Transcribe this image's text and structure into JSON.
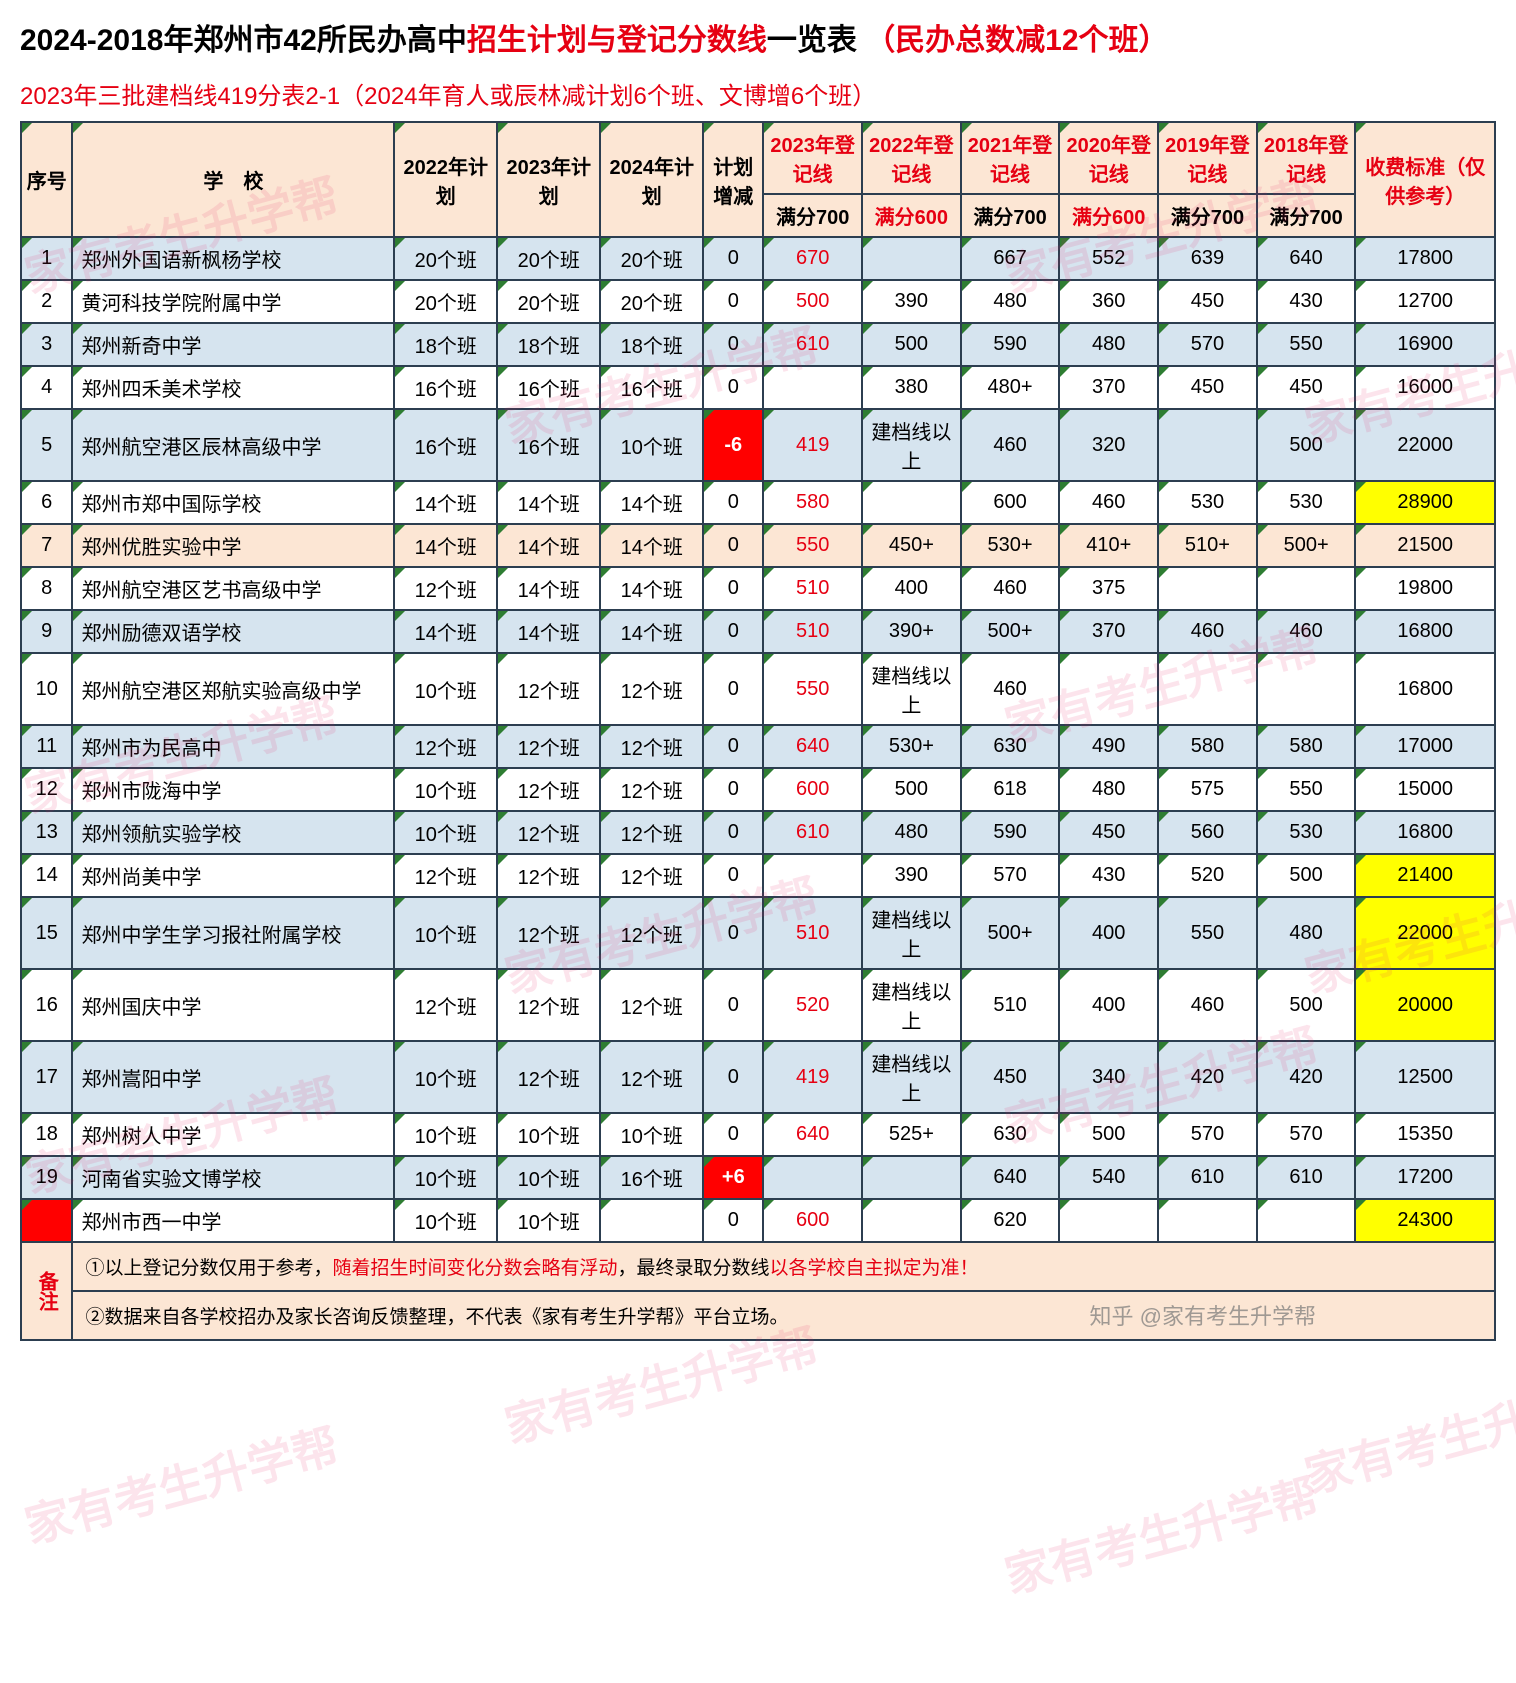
{
  "title_segments": [
    {
      "text": "2024-2018年郑州市42所民办高中",
      "cls": "title-black"
    },
    {
      "text": "招生计划与登记分数线",
      "cls": "title-red"
    },
    {
      "text": "一览表 ",
      "cls": "title-black"
    },
    {
      "text": "（民办总数减12个班）",
      "cls": "title-red"
    }
  ],
  "subtitle": "2023年三批建档线419分表2-1（2024年育人或辰林减计划6个班、文博增6个班）",
  "header": {
    "seq": "序号",
    "school": "学　校",
    "plan2022": "2022年计划",
    "plan2023": "2023年计划",
    "plan2024": "2024年计划",
    "delta": "计划增减",
    "y2023": "2023年登记线",
    "y2022": "2022年登记线",
    "y2021": "2021年登记线",
    "y2020": "2020年登记线",
    "y2019": "2019年登记线",
    "y2018": "2018年登记线",
    "full700": "满分700",
    "full600": "满分600",
    "fee": "收费标准（仅供参考）"
  },
  "col_widths": {
    "seq": 48,
    "school": 300,
    "plan": 96,
    "delta": 56,
    "year": 92,
    "fee": 130
  },
  "colors": {
    "header_bg": "#fce6d4",
    "row_even": "#d6e4ef",
    "row_odd": "#ffffff",
    "red": "#e60012",
    "hl_red": "#ff0000",
    "hl_yellow": "#ffff00",
    "border": "#2c3e50",
    "green_corner": "#2e7d32"
  },
  "rows": [
    {
      "seq": "1",
      "school": "郑州外国语新枫杨学校",
      "p22": "20个班",
      "p23": "20个班",
      "p24": "20个班",
      "delta": "0",
      "s23": "670",
      "s22": "",
      "s21": "667",
      "s20": "552",
      "s19": "639",
      "s18": "640",
      "fee": "17800"
    },
    {
      "seq": "2",
      "school": "黄河科技学院附属中学",
      "p22": "20个班",
      "p23": "20个班",
      "p24": "20个班",
      "delta": "0",
      "s23": "500",
      "s22": "390",
      "s21": "480",
      "s20": "360",
      "s19": "450",
      "s18": "430",
      "fee": "12700"
    },
    {
      "seq": "3",
      "school": "郑州新奇中学",
      "p22": "18个班",
      "p23": "18个班",
      "p24": "18个班",
      "delta": "0",
      "s23": "610",
      "s22": "500",
      "s21": "590",
      "s20": "480",
      "s19": "570",
      "s18": "550",
      "fee": "16900"
    },
    {
      "seq": "4",
      "school": "郑州四禾美术学校",
      "p22": "16个班",
      "p23": "16个班",
      "p24": "16个班",
      "delta": "0",
      "s23": "",
      "s22": "380",
      "s21": "480+",
      "s20": "370",
      "s19": "450",
      "s18": "450",
      "fee": "16000"
    },
    {
      "seq": "5",
      "school": "郑州航空港区辰林高级中学",
      "p22": "16个班",
      "p23": "16个班",
      "p24": "10个班",
      "delta": "-6",
      "delta_bg": "red",
      "s23": "419",
      "s22": "建档线以上",
      "s21": "460",
      "s20": "320",
      "s19": "",
      "s18": "500",
      "fee": "22000"
    },
    {
      "seq": "6",
      "school": "郑州市郑中国际学校",
      "p22": "14个班",
      "p23": "14个班",
      "p24": "14个班",
      "delta": "0",
      "s23": "580",
      "s22": "",
      "s21": "600",
      "s20": "460",
      "s19": "530",
      "s18": "530",
      "fee": "28900",
      "fee_bg": "yellow"
    },
    {
      "seq": "7",
      "school": "郑州优胜实验中学",
      "row_bg": "peach",
      "p22": "14个班",
      "p23": "14个班",
      "p24": "14个班",
      "delta": "0",
      "s23": "550",
      "s22": "450+",
      "s21": "530+",
      "s20": "410+",
      "s19": "510+",
      "s18": "500+",
      "fee": "21500",
      "fee_bg": "yellow"
    },
    {
      "seq": "8",
      "school": "郑州航空港区艺书高级中学",
      "p22": "12个班",
      "p23": "14个班",
      "p24": "14个班",
      "delta": "0",
      "s23": "510",
      "s22": "400",
      "s21": "460",
      "s20": "375",
      "s19": "",
      "s18": "",
      "fee": "19800"
    },
    {
      "seq": "9",
      "school": "郑州励德双语学校",
      "p22": "14个班",
      "p23": "14个班",
      "p24": "14个班",
      "delta": "0",
      "s23": "510",
      "s22": "390+",
      "s21": "500+",
      "s20": "370",
      "s19": "460",
      "s18": "460",
      "fee": "16800"
    },
    {
      "seq": "10",
      "school": "郑州航空港区郑航实验高级中学",
      "p22": "10个班",
      "p23": "12个班",
      "p24": "12个班",
      "delta": "0",
      "s23": "550",
      "s22": "建档线以上",
      "s21": "460",
      "s20": "",
      "s19": "",
      "s18": "",
      "fee": "16800"
    },
    {
      "seq": "11",
      "school": "郑州市为民高中",
      "p22": "12个班",
      "p23": "12个班",
      "p24": "12个班",
      "delta": "0",
      "s23": "640",
      "s22": "530+",
      "s21": "630",
      "s20": "490",
      "s19": "580",
      "s18": "580",
      "fee": "17000"
    },
    {
      "seq": "12",
      "school": "郑州市陇海中学",
      "p22": "10个班",
      "p23": "12个班",
      "p24": "12个班",
      "delta": "0",
      "s23": "600",
      "s22": "500",
      "s21": "618",
      "s20": "480",
      "s19": "575",
      "s18": "550",
      "fee": "15000"
    },
    {
      "seq": "13",
      "school": "郑州领航实验学校",
      "p22": "10个班",
      "p23": "12个班",
      "p24": "12个班",
      "delta": "0",
      "s23": "610",
      "s22": "480",
      "s21": "590",
      "s20": "450",
      "s19": "560",
      "s18": "530",
      "fee": "16800"
    },
    {
      "seq": "14",
      "school": "郑州尚美中学",
      "p22": "12个班",
      "p23": "12个班",
      "p24": "12个班",
      "delta": "0",
      "s23": "",
      "s22": "390",
      "s21": "570",
      "s20": "430",
      "s19": "520",
      "s18": "500",
      "fee": "21400",
      "fee_bg": "yellow"
    },
    {
      "seq": "15",
      "school": "郑州中学生学习报社附属学校",
      "p22": "10个班",
      "p23": "12个班",
      "p24": "12个班",
      "delta": "0",
      "s23": "510",
      "s22": "建档线以上",
      "s21": "500+",
      "s20": "400",
      "s19": "550",
      "s18": "480",
      "fee": "22000",
      "fee_bg": "yellow"
    },
    {
      "seq": "16",
      "school": "郑州国庆中学",
      "p22": "12个班",
      "p23": "12个班",
      "p24": "12个班",
      "delta": "0",
      "s23": "520",
      "s22": "建档线以上",
      "s21": "510",
      "s20": "400",
      "s19": "460",
      "s18": "500",
      "fee": "20000",
      "fee_bg": "yellow"
    },
    {
      "seq": "17",
      "school": "郑州嵩阳中学",
      "p22": "10个班",
      "p23": "12个班",
      "p24": "12个班",
      "delta": "0",
      "s23": "419",
      "s22": "建档线以上",
      "s21": "450",
      "s20": "340",
      "s19": "420",
      "s18": "420",
      "fee": "12500"
    },
    {
      "seq": "18",
      "school": "郑州树人中学",
      "p22": "10个班",
      "p23": "10个班",
      "p24": "10个班",
      "delta": "0",
      "s23": "640",
      "s22": "525+",
      "s21": "630",
      "s20": "500",
      "s19": "570",
      "s18": "570",
      "fee": "15350"
    },
    {
      "seq": "19",
      "school": "河南省实验文博学校",
      "p22": "10个班",
      "p23": "10个班",
      "p24": "16个班",
      "delta": "+6",
      "delta_bg": "red",
      "s23": "",
      "s22": "",
      "s21": "640",
      "s20": "540",
      "s19": "610",
      "s18": "610",
      "fee": "17200"
    },
    {
      "seq": "",
      "seq_bg": "red",
      "school": "郑州市西一中学",
      "p22": "10个班",
      "p23": "10个班",
      "p24": "",
      "delta": "0",
      "s23": "600",
      "s22": "",
      "s21": "620",
      "s20": "",
      "s19": "",
      "s18": "",
      "fee": "24300",
      "fee_bg": "yellow"
    }
  ],
  "footnote_label": "备注",
  "footnote_segments_1": [
    {
      "t": "①以上登记分数仅用于参考，",
      "c": "black"
    },
    {
      "t": "随着招生时间变化分数会略有浮动",
      "c": "red"
    },
    {
      "t": "，最终录取分数线",
      "c": "black"
    },
    {
      "t": "以各学校自主拟定为准！",
      "c": "red"
    }
  ],
  "footnote_segments_2": [
    {
      "t": "②数据来自各学校招办及家长咨询反馈整理，不代表《家有考生升学帮》平台立场。",
      "c": "black"
    }
  ],
  "watermark_text": "家有考生升学帮",
  "attribution": "知乎 @家有考生升学帮"
}
